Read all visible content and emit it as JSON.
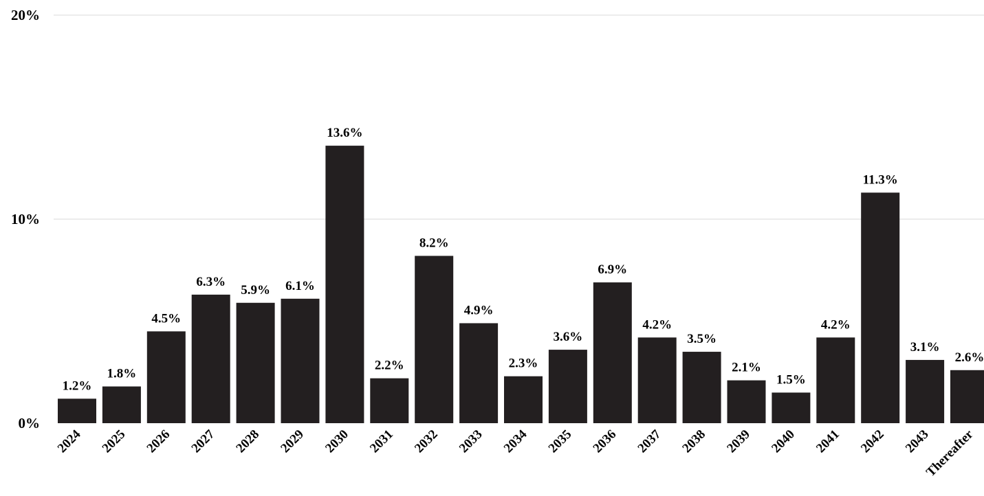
{
  "chart_data": {
    "type": "bar",
    "title": "",
    "xlabel": "",
    "ylabel": "",
    "categories": [
      "2024",
      "2025",
      "2026",
      "2027",
      "2028",
      "2029",
      "2030",
      "2031",
      "2032",
      "2033",
      "2034",
      "2035",
      "2036",
      "2037",
      "2038",
      "2039",
      "2040",
      "2041",
      "2042",
      "2043",
      "Thereafter"
    ],
    "values": [
      1.2,
      1.8,
      4.5,
      6.3,
      5.9,
      6.1,
      13.6,
      2.2,
      8.2,
      4.9,
      2.3,
      3.6,
      6.9,
      4.2,
      3.5,
      2.1,
      1.5,
      4.2,
      11.3,
      3.1,
      2.6
    ],
    "data_labels": [
      "1.2%",
      "1.8%",
      "4.5%",
      "6.3%",
      "5.9%",
      "6.1%",
      "13.6%",
      "2.2%",
      "8.2%",
      "4.9%",
      "2.3%",
      "3.6%",
      "6.9%",
      "4.2%",
      "3.5%",
      "2.1%",
      "1.5%",
      "4.2%",
      "11.3%",
      "3.1%",
      "2.6%"
    ],
    "ylim": [
      0,
      20
    ],
    "yticks": [
      0,
      10,
      20
    ],
    "ytick_labels": [
      "0%",
      "10%",
      "20%"
    ],
    "grid": true,
    "legend": "none",
    "bar_color": "#231f20",
    "grid_color": "#d9d9d9"
  }
}
